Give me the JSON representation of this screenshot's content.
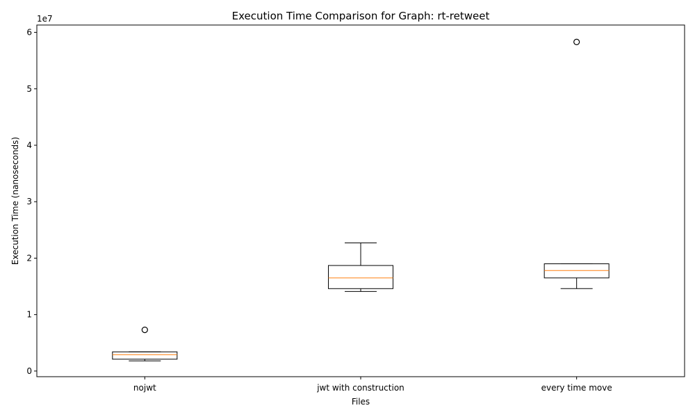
{
  "chart_data": {
    "type": "box",
    "title": "Execution Time Comparison for Graph: rt-retweet",
    "xlabel": "Files",
    "ylabel": "Execution Time (nanoseconds)",
    "offset_label": "1e7",
    "ylim": [
      -1000000,
      61300000
    ],
    "yticks": [
      0,
      10000000,
      20000000,
      30000000,
      40000000,
      50000000,
      60000000
    ],
    "ytick_labels": [
      "0",
      "1",
      "2",
      "3",
      "4",
      "5",
      "6"
    ],
    "categories": [
      "nojwt",
      "jwt with construction",
      "every time move"
    ],
    "boxes": [
      {
        "category": "nojwt",
        "whisker_low": 1800000,
        "q1": 2100000,
        "median": 2900000,
        "q3": 3400000,
        "whisker_high": 3400000,
        "outliers": [
          7300000
        ]
      },
      {
        "category": "jwt with construction",
        "whisker_low": 14100000,
        "q1": 14600000,
        "median": 16500000,
        "q3": 18700000,
        "whisker_high": 22700000,
        "outliers": []
      },
      {
        "category": "every time move",
        "whisker_low": 14600000,
        "q1": 16500000,
        "median": 17800000,
        "q3": 19000000,
        "whisker_high": 19000000,
        "outliers": [
          58300000
        ]
      }
    ],
    "colors": {
      "box": "#000000",
      "median": "#ff7f0e",
      "axes": "#000000",
      "background": "#ffffff"
    },
    "grid": false,
    "legend": "none"
  }
}
